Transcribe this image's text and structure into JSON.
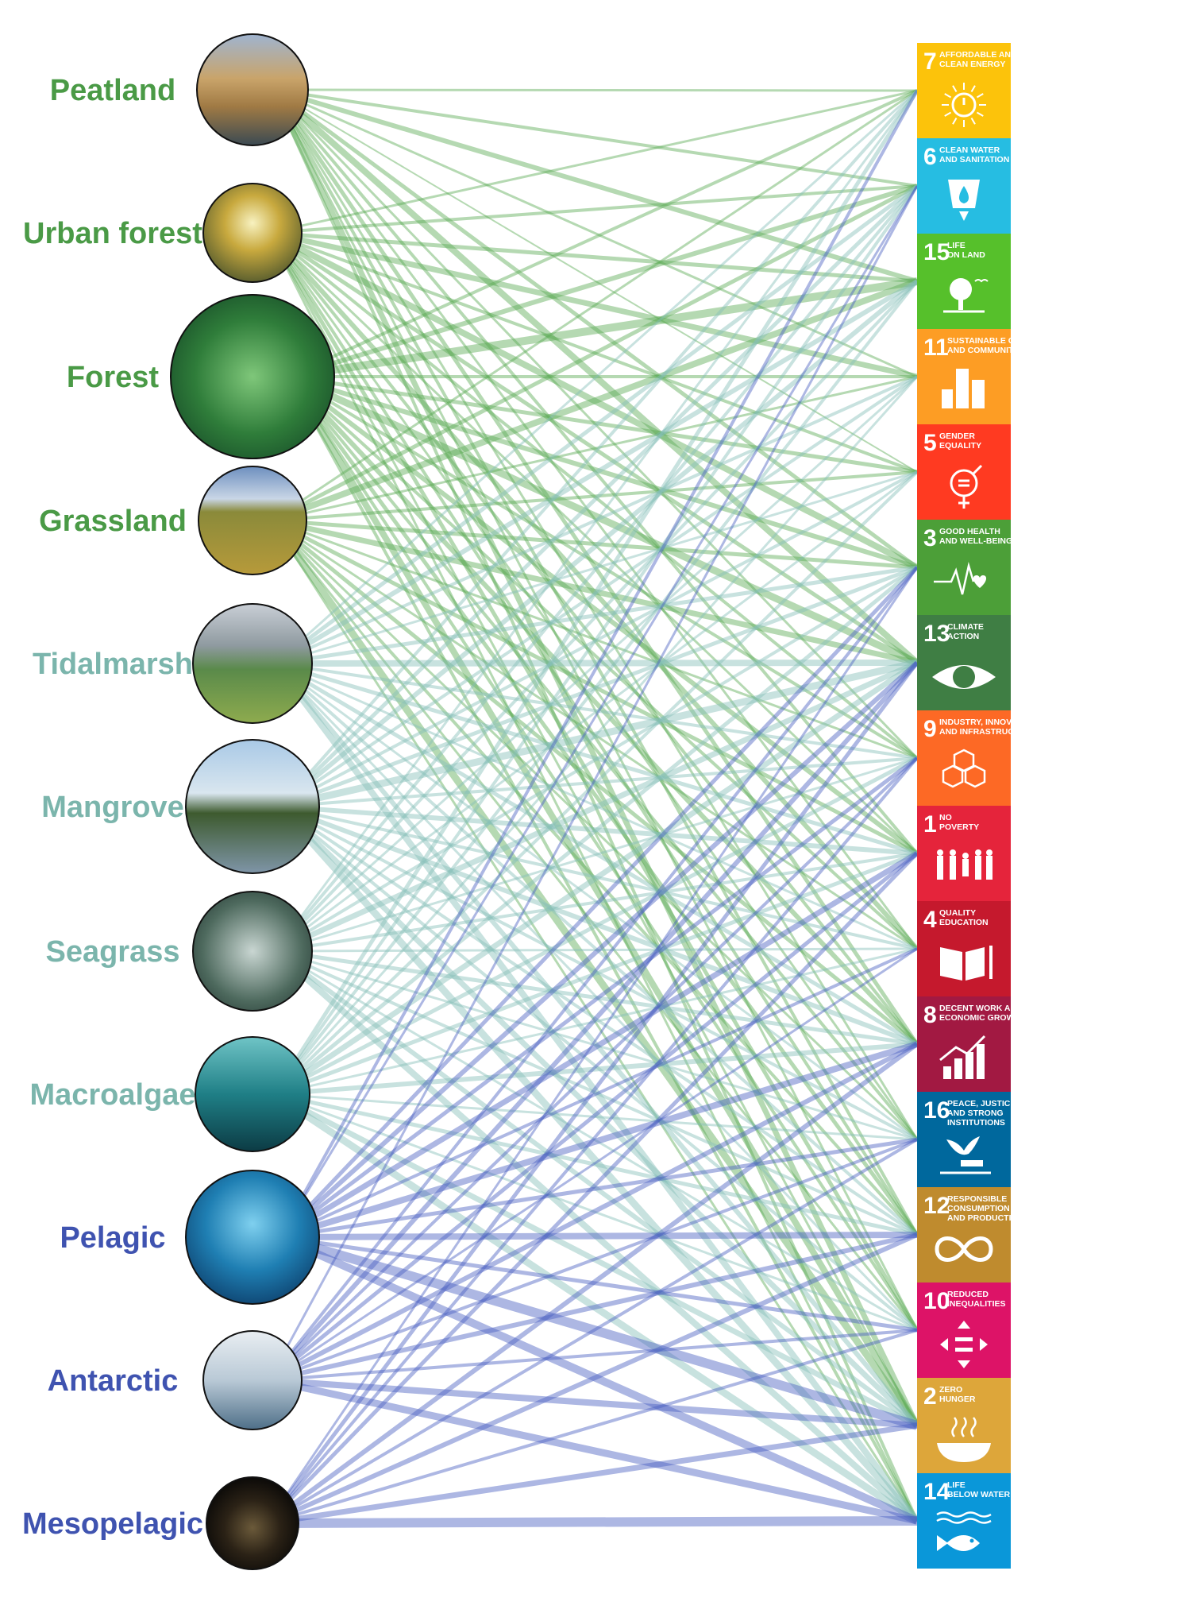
{
  "colors": {
    "terrestrial": "#4a9a46",
    "coastal": "#7bb5ac",
    "ocean": "#3f53b0",
    "terrestrial_link": "#5aaa55",
    "coastal_link": "#86bfb8",
    "ocean_link": "#4a5fc0"
  },
  "ecosystems": [
    {
      "id": "peatland",
      "label": "Peatland",
      "group": "terrestrial"
    },
    {
      "id": "urban-forest",
      "label": "Urban forest",
      "group": "terrestrial"
    },
    {
      "id": "forest",
      "label": "Forest",
      "group": "terrestrial"
    },
    {
      "id": "grassland",
      "label": "Grassland",
      "group": "terrestrial"
    },
    {
      "id": "tidalmarsh",
      "label": "Tidalmarsh",
      "group": "coastal"
    },
    {
      "id": "mangrove",
      "label": "Mangrove",
      "group": "coastal"
    },
    {
      "id": "seagrass",
      "label": "Seagrass",
      "group": "coastal"
    },
    {
      "id": "macroalgae",
      "label": "Macroalgae",
      "group": "coastal"
    },
    {
      "id": "pelagic",
      "label": "Pelagic",
      "group": "ocean"
    },
    {
      "id": "antarctic",
      "label": "Antarctic",
      "group": "ocean"
    },
    {
      "id": "mesopelagic",
      "label": "Mesopelagic",
      "group": "ocean"
    }
  ],
  "sdgs": [
    {
      "num": "7",
      "title": [
        "AFFORDABLE AND",
        "CLEAN ENERGY"
      ],
      "color": "#fcc30b",
      "icon": "sun-power-icon"
    },
    {
      "num": "6",
      "title": [
        "CLEAN WATER",
        "AND SANITATION"
      ],
      "color": "#26bde2",
      "icon": "water-drop-icon"
    },
    {
      "num": "15",
      "title": [
        "LIFE",
        "ON LAND"
      ],
      "color": "#56c02b",
      "icon": "tree-icon"
    },
    {
      "num": "11",
      "title": [
        "SUSTAINABLE CITIES",
        "AND COMMUNITIES"
      ],
      "color": "#fd9d24",
      "icon": "city-icon"
    },
    {
      "num": "5",
      "title": [
        "GENDER",
        "EQUALITY"
      ],
      "color": "#ff3a21",
      "icon": "gender-equality-icon"
    },
    {
      "num": "3",
      "title": [
        "GOOD HEALTH",
        "AND WELL-BEING"
      ],
      "color": "#4c9f38",
      "icon": "heartbeat-icon"
    },
    {
      "num": "13",
      "title": [
        "CLIMATE",
        "ACTION"
      ],
      "color": "#3f7e44",
      "icon": "eye-globe-icon"
    },
    {
      "num": "9",
      "title": [
        "INDUSTRY, INNOVATION",
        "AND INFRASTRUCTURE"
      ],
      "color": "#fd6925",
      "icon": "cubes-icon"
    },
    {
      "num": "1",
      "title": [
        "NO",
        "POVERTY"
      ],
      "color": "#e5243b",
      "icon": "family-icon"
    },
    {
      "num": "4",
      "title": [
        "QUALITY",
        "EDUCATION"
      ],
      "color": "#c5192d",
      "icon": "book-pencil-icon"
    },
    {
      "num": "8",
      "title": [
        "DECENT WORK AND",
        "ECONOMIC GROWTH"
      ],
      "color": "#a21942",
      "icon": "growth-chart-icon"
    },
    {
      "num": "16",
      "title": [
        "PEACE, JUSTICE",
        "AND STRONG",
        "INSTITUTIONS"
      ],
      "color": "#00689d",
      "icon": "dove-gavel-icon"
    },
    {
      "num": "12",
      "title": [
        "RESPONSIBLE",
        "CONSUMPTION",
        "AND PRODUCTION"
      ],
      "color": "#bf8b2e",
      "icon": "infinity-icon"
    },
    {
      "num": "10",
      "title": [
        "REDUCED",
        "INEQUALITIES"
      ],
      "color": "#dd1367",
      "icon": "arrows-equal-icon"
    },
    {
      "num": "2",
      "title": [
        "ZERO",
        "HUNGER"
      ],
      "color": "#dda63a",
      "icon": "bowl-icon"
    },
    {
      "num": "14",
      "title": [
        "LIFE",
        "BELOW WATER"
      ],
      "color": "#0a97d9",
      "icon": "fish-icon"
    }
  ],
  "links": [
    {
      "from": "peatland",
      "to": [
        "7",
        "6",
        "15",
        "11",
        "5",
        "3",
        "13",
        "9",
        "1",
        "4",
        "8",
        "16",
        "12",
        "10",
        "2",
        "14"
      ],
      "weight": [
        3,
        4,
        6,
        3,
        2,
        5,
        8,
        3,
        4,
        3,
        5,
        3,
        4,
        3,
        7,
        4
      ]
    },
    {
      "from": "urban-forest",
      "to": [
        "7",
        "6",
        "15",
        "11",
        "5",
        "3",
        "13",
        "9",
        "1",
        "4",
        "8",
        "16",
        "12",
        "10",
        "2",
        "14"
      ],
      "weight": [
        3,
        4,
        5,
        7,
        4,
        8,
        5,
        4,
        3,
        6,
        4,
        3,
        4,
        5,
        3,
        3
      ]
    },
    {
      "from": "forest",
      "to": [
        "7",
        "6",
        "15",
        "11",
        "5",
        "3",
        "13",
        "9",
        "1",
        "4",
        "8",
        "16",
        "12",
        "10",
        "2",
        "14"
      ],
      "weight": [
        4,
        6,
        10,
        4,
        5,
        6,
        9,
        4,
        6,
        4,
        6,
        4,
        5,
        4,
        8,
        4
      ]
    },
    {
      "from": "grassland",
      "to": [
        "7",
        "6",
        "15",
        "11",
        "5",
        "3",
        "13",
        "9",
        "1",
        "4",
        "8",
        "16",
        "12",
        "10",
        "2",
        "14"
      ],
      "weight": [
        3,
        5,
        8,
        3,
        4,
        5,
        7,
        3,
        5,
        3,
        5,
        3,
        4,
        3,
        9,
        3
      ]
    },
    {
      "from": "tidalmarsh",
      "to": [
        "7",
        "6",
        "15",
        "11",
        "5",
        "3",
        "13",
        "9",
        "1",
        "4",
        "8",
        "16",
        "12",
        "10",
        "2",
        "14"
      ],
      "weight": [
        3,
        5,
        6,
        4,
        3,
        5,
        8,
        4,
        5,
        3,
        5,
        3,
        4,
        3,
        6,
        8
      ]
    },
    {
      "from": "mangrove",
      "to": [
        "7",
        "6",
        "15",
        "11",
        "5",
        "3",
        "13",
        "9",
        "1",
        "4",
        "8",
        "16",
        "12",
        "10",
        "2",
        "14"
      ],
      "weight": [
        4,
        5,
        6,
        4,
        4,
        5,
        9,
        4,
        6,
        4,
        6,
        4,
        4,
        4,
        7,
        9
      ]
    },
    {
      "from": "seagrass",
      "to": [
        "7",
        "6",
        "15",
        "11",
        "5",
        "3",
        "13",
        "9",
        "1",
        "4",
        "8",
        "16",
        "12",
        "10",
        "2",
        "14"
      ],
      "weight": [
        3,
        4,
        4,
        3,
        3,
        4,
        7,
        3,
        4,
        3,
        5,
        3,
        4,
        3,
        6,
        8
      ]
    },
    {
      "from": "macroalgae",
      "to": [
        "7",
        "6",
        "15",
        "11",
        "5",
        "3",
        "13",
        "9",
        "1",
        "4",
        "8",
        "16",
        "12",
        "10",
        "2",
        "14"
      ],
      "weight": [
        5,
        4,
        4,
        3,
        4,
        5,
        7,
        5,
        5,
        3,
        6,
        3,
        5,
        3,
        7,
        9
      ]
    },
    {
      "from": "pelagic",
      "to": [
        "7",
        "6",
        "3",
        "13",
        "9",
        "1",
        "4",
        "8",
        "16",
        "12",
        "10",
        "2",
        "14"
      ],
      "weight": [
        4,
        3,
        5,
        6,
        5,
        7,
        4,
        8,
        5,
        8,
        5,
        12,
        10
      ]
    },
    {
      "from": "antarctic",
      "to": [
        "6",
        "3",
        "13",
        "9",
        "1",
        "4",
        "8",
        "16",
        "12",
        "10",
        "2",
        "14"
      ],
      "weight": [
        3,
        4,
        6,
        4,
        5,
        3,
        6,
        4,
        6,
        4,
        8,
        9
      ]
    },
    {
      "from": "mesopelagic",
      "to": [
        "3",
        "13",
        "9",
        "1",
        "8",
        "16",
        "12",
        "10",
        "2",
        "14"
      ],
      "weight": [
        3,
        5,
        4,
        5,
        6,
        4,
        6,
        4,
        7,
        12
      ]
    }
  ]
}
